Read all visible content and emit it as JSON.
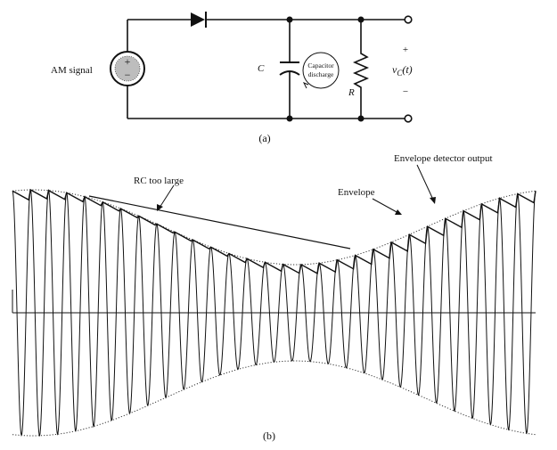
{
  "circuit": {
    "source_label": "AM signal",
    "capacitor_label": "C",
    "resistor_label": "R",
    "discharge_label_line1": "Capacitor",
    "discharge_label_line2": "discharge",
    "output_plus": "+",
    "output_minus": "−",
    "output_label": "v",
    "output_subscript": "C",
    "output_arg": "(t)",
    "caption": "(a)"
  },
  "waveform": {
    "caption": "(b)",
    "annotations": {
      "rc_too_large": "RC too large",
      "envelope": "Envelope",
      "detector_output": "Envelope detector output"
    }
  }
}
